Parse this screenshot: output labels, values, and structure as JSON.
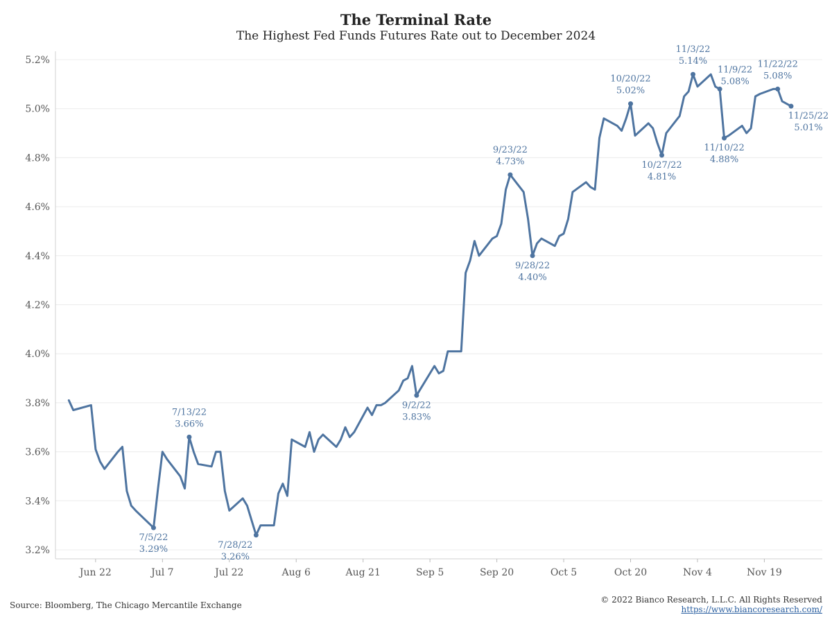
{
  "chart_data": {
    "type": "line",
    "title": "The Terminal Rate",
    "subtitle": "The Highest Fed Funds Futures Rate out to December 2024",
    "ylim": [
      3.2,
      5.2
    ],
    "yticks": [
      "3.2%",
      "3.4%",
      "3.6%",
      "3.8%",
      "4.0%",
      "4.2%",
      "4.4%",
      "4.6%",
      "4.8%",
      "5.0%",
      "5.2%"
    ],
    "ytick_values": [
      3.2,
      3.4,
      3.6,
      3.8,
      4.0,
      4.2,
      4.4,
      4.6,
      4.8,
      5.0,
      5.2
    ],
    "xlim": [
      "2022-06-13",
      "2022-12-02"
    ],
    "xticks": [
      {
        "date": "2022-06-22",
        "label": "Jun 22"
      },
      {
        "date": "2022-07-07",
        "label": "Jul 7"
      },
      {
        "date": "2022-07-22",
        "label": "Jul 22"
      },
      {
        "date": "2022-08-06",
        "label": "Aug 6"
      },
      {
        "date": "2022-08-21",
        "label": "Aug 21"
      },
      {
        "date": "2022-09-05",
        "label": "Sep 5"
      },
      {
        "date": "2022-09-20",
        "label": "Sep 20"
      },
      {
        "date": "2022-10-05",
        "label": "Oct 5"
      },
      {
        "date": "2022-10-20",
        "label": "Oct 20"
      },
      {
        "date": "2022-11-04",
        "label": "Nov 4"
      },
      {
        "date": "2022-11-19",
        "label": "Nov 19"
      }
    ],
    "line_color": "#4e74a0",
    "series": [
      {
        "x": [
          "2022-06-16",
          "2022-06-17",
          "2022-06-21",
          "2022-06-22",
          "2022-06-23",
          "2022-06-24",
          "2022-06-27",
          "2022-06-28",
          "2022-06-29",
          "2022-06-30",
          "2022-07-01",
          "2022-07-05",
          "2022-07-06",
          "2022-07-07",
          "2022-07-08",
          "2022-07-11",
          "2022-07-12",
          "2022-07-13",
          "2022-07-14",
          "2022-07-15",
          "2022-07-18",
          "2022-07-19",
          "2022-07-20",
          "2022-07-21",
          "2022-07-22",
          "2022-07-25",
          "2022-07-26",
          "2022-07-27",
          "2022-07-28",
          "2022-07-29",
          "2022-08-01",
          "2022-08-02",
          "2022-08-03",
          "2022-08-04",
          "2022-08-05",
          "2022-08-08",
          "2022-08-09",
          "2022-08-10",
          "2022-08-11",
          "2022-08-12",
          "2022-08-15",
          "2022-08-16",
          "2022-08-17",
          "2022-08-18",
          "2022-08-19",
          "2022-08-22",
          "2022-08-23",
          "2022-08-24",
          "2022-08-25",
          "2022-08-26",
          "2022-08-29",
          "2022-08-30",
          "2022-08-31",
          "2022-09-01",
          "2022-09-02",
          "2022-09-06",
          "2022-09-07",
          "2022-09-08",
          "2022-09-09",
          "2022-09-12",
          "2022-09-13",
          "2022-09-14",
          "2022-09-15",
          "2022-09-16",
          "2022-09-19",
          "2022-09-20",
          "2022-09-21",
          "2022-09-22",
          "2022-09-23",
          "2022-09-26",
          "2022-09-27",
          "2022-09-28",
          "2022-09-29",
          "2022-09-30",
          "2022-10-03",
          "2022-10-04",
          "2022-10-05",
          "2022-10-06",
          "2022-10-07",
          "2022-10-10",
          "2022-10-11",
          "2022-10-12",
          "2022-10-13",
          "2022-10-14",
          "2022-10-17",
          "2022-10-18",
          "2022-10-19",
          "2022-10-20",
          "2022-10-21",
          "2022-10-24",
          "2022-10-25",
          "2022-10-26",
          "2022-10-27",
          "2022-10-28",
          "2022-10-31",
          "2022-11-01",
          "2022-11-02",
          "2022-11-03",
          "2022-11-04",
          "2022-11-07",
          "2022-11-08",
          "2022-11-09",
          "2022-11-10",
          "2022-11-11",
          "2022-11-14",
          "2022-11-15",
          "2022-11-16",
          "2022-11-17",
          "2022-11-18",
          "2022-11-21",
          "2022-11-22",
          "2022-11-23",
          "2022-11-25"
        ],
        "y": [
          3.81,
          3.77,
          3.79,
          3.61,
          3.56,
          3.53,
          3.6,
          3.62,
          3.44,
          3.38,
          3.36,
          3.29,
          3.45,
          3.6,
          3.57,
          3.5,
          3.45,
          3.66,
          3.6,
          3.55,
          3.54,
          3.6,
          3.6,
          3.44,
          3.36,
          3.41,
          3.38,
          3.32,
          3.26,
          3.3,
          3.3,
          3.43,
          3.47,
          3.42,
          3.65,
          3.62,
          3.68,
          3.6,
          3.65,
          3.67,
          3.62,
          3.65,
          3.7,
          3.66,
          3.68,
          3.78,
          3.75,
          3.79,
          3.79,
          3.8,
          3.85,
          3.89,
          3.9,
          3.95,
          3.83,
          3.95,
          3.92,
          3.93,
          4.01,
          4.01,
          4.33,
          4.38,
          4.46,
          4.4,
          4.47,
          4.48,
          4.53,
          4.67,
          4.73,
          4.66,
          4.55,
          4.4,
          4.45,
          4.47,
          4.44,
          4.48,
          4.49,
          4.55,
          4.66,
          4.7,
          4.68,
          4.67,
          4.88,
          4.96,
          4.93,
          4.91,
          4.96,
          5.02,
          4.89,
          4.94,
          4.92,
          4.86,
          4.81,
          4.9,
          4.97,
          5.05,
          5.07,
          5.14,
          5.09,
          5.14,
          5.09,
          5.08,
          4.88,
          4.89,
          4.93,
          4.9,
          4.92,
          5.05,
          5.06,
          5.08,
          5.08,
          5.03,
          5.01
        ]
      }
    ],
    "annotations": [
      {
        "date": "2022-07-05",
        "value": 3.29,
        "label": "7/5/22",
        "value_label": "3.29%",
        "position": "below"
      },
      {
        "date": "2022-07-13",
        "value": 3.66,
        "label": "7/13/22",
        "value_label": "3.66%",
        "position": "above"
      },
      {
        "date": "2022-07-28",
        "value": 3.26,
        "label": "7/28/22",
        "value_label": "3.26%",
        "position": "below-left"
      },
      {
        "date": "2022-09-02",
        "value": 3.83,
        "label": "9/2/22",
        "value_label": "3.83%",
        "position": "below"
      },
      {
        "date": "2022-09-23",
        "value": 4.73,
        "label": "9/23/22",
        "value_label": "4.73%",
        "position": "above"
      },
      {
        "date": "2022-09-28",
        "value": 4.4,
        "label": "9/28/22",
        "value_label": "4.40%",
        "position": "below"
      },
      {
        "date": "2022-10-20",
        "value": 5.02,
        "label": "10/20/22",
        "value_label": "5.02%",
        "position": "above"
      },
      {
        "date": "2022-10-27",
        "value": 4.81,
        "label": "10/27/22",
        "value_label": "4.81%",
        "position": "below"
      },
      {
        "date": "2022-11-03",
        "value": 5.14,
        "label": "11/3/22",
        "value_label": "5.14%",
        "position": "above"
      },
      {
        "date": "2022-11-09",
        "value": 5.08,
        "label": "11/9/22",
        "value_label": "5.08%",
        "position": "above-right"
      },
      {
        "date": "2022-11-10",
        "value": 4.88,
        "label": "11/10/22",
        "value_label": "4.88%",
        "position": "below"
      },
      {
        "date": "2022-11-22",
        "value": 5.08,
        "label": "11/22/22",
        "value_label": "5.08%",
        "position": "above"
      },
      {
        "date": "2022-11-25",
        "value": 5.01,
        "label": "11/25/22",
        "value_label": "5.01%",
        "position": "below-right"
      }
    ],
    "grid": true
  },
  "footer": {
    "source": "Source: Bloomberg, The Chicago Mercantile Exchange",
    "copyright": "© 2022 Bianco Research, L.L.C. All Rights Reserved",
    "website": "https://www.biancoresearch.com/"
  }
}
